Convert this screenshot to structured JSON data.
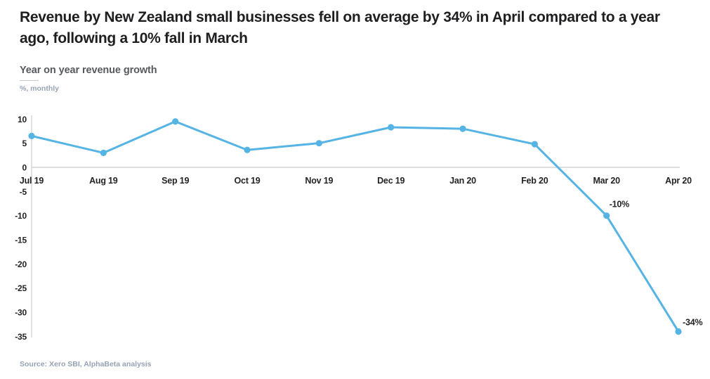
{
  "header": {
    "title": "Revenue by New Zealand small businesses fell on average by 34% in April compared to a year ago, following a 10% fall in March",
    "subtitle": "Year on year revenue growth",
    "unit_label": "%, monthly"
  },
  "footer": {
    "source": "Source: Xero SBI, AlphaBeta analysis"
  },
  "chart_data": {
    "type": "line",
    "title": "Year on year revenue growth",
    "subtitle": "%, monthly",
    "categories": [
      "Jul 19",
      "Aug 19",
      "Sep 19",
      "Oct 19",
      "Nov 19",
      "Dec 19",
      "Jan 20",
      "Feb 20",
      "Mar 20",
      "Apr 20"
    ],
    "series": [
      {
        "name": "Year on year revenue growth (%)",
        "values": [
          6.5,
          3,
          9.5,
          3.6,
          5,
          8.3,
          8,
          4.8,
          -10,
          -34
        ]
      }
    ],
    "annotations": [
      {
        "category": "Mar 20",
        "label": "-10%"
      },
      {
        "category": "Apr 20",
        "label": "-34%"
      }
    ],
    "y_ticks": [
      10,
      5,
      0,
      -5,
      -10,
      -15,
      -20,
      -25,
      -30,
      -35
    ],
    "ylim": [
      -35,
      10
    ],
    "xlabel": "",
    "ylabel": "%, monthly",
    "grid": false,
    "legend_position": "none",
    "colors": {
      "line": "#56b4e5",
      "marker": "#56b4e5",
      "axis_line": "#d4d4d4",
      "tick_label": "#232325",
      "annotation": "#232325"
    }
  }
}
